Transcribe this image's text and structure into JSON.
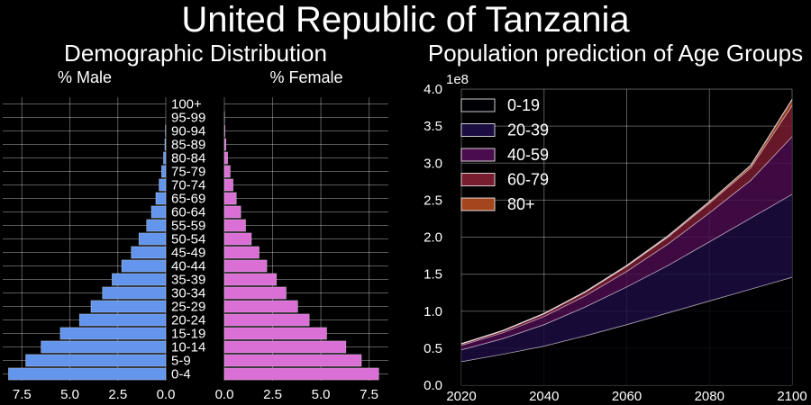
{
  "figure": {
    "title": "United Republic of Tanzania",
    "left_title": "Demographic Distribution",
    "right_title": "Population prediction of Age Groups"
  },
  "chart_data": [
    {
      "type": "bar",
      "orientation": "horizontal",
      "title": "% Male",
      "categories": [
        "0-4",
        "5-9",
        "10-14",
        "15-19",
        "20-24",
        "25-29",
        "30-34",
        "35-39",
        "40-44",
        "45-49",
        "50-54",
        "55-59",
        "60-64",
        "65-69",
        "70-74",
        "75-79",
        "80-84",
        "85-89",
        "90-94",
        "95-99",
        "100+"
      ],
      "values": [
        8.2,
        7.3,
        6.5,
        5.5,
        4.5,
        3.9,
        3.3,
        2.8,
        2.3,
        1.8,
        1.4,
        1.0,
        0.75,
        0.52,
        0.35,
        0.22,
        0.12,
        0.05,
        0.02,
        0.0,
        0.0
      ],
      "xlim": [
        8.5,
        0
      ],
      "xticks": [
        "7.5",
        "5.0",
        "2.5",
        "0.0"
      ],
      "color": "#6495ED",
      "grid": true
    },
    {
      "type": "bar",
      "orientation": "horizontal",
      "title": "% Female",
      "categories": [
        "0-4",
        "5-9",
        "10-14",
        "15-19",
        "20-24",
        "25-29",
        "30-34",
        "35-39",
        "40-44",
        "45-49",
        "50-54",
        "55-59",
        "60-64",
        "65-69",
        "70-74",
        "75-79",
        "80-84",
        "85-89",
        "90-94",
        "95-99",
        "100+"
      ],
      "values": [
        8.0,
        7.1,
        6.3,
        5.3,
        4.4,
        3.8,
        3.2,
        2.7,
        2.2,
        1.8,
        1.4,
        1.1,
        0.85,
        0.62,
        0.45,
        0.3,
        0.17,
        0.08,
        0.03,
        0.01,
        0.0
      ],
      "xlim": [
        0,
        8.5
      ],
      "xticks": [
        "0.0",
        "2.5",
        "5.0",
        "7.5"
      ],
      "color": "#DA70D6",
      "grid": true
    },
    {
      "type": "area",
      "stacked": true,
      "title": "Population prediction of Age Groups",
      "x": [
        2020,
        2030,
        2040,
        2050,
        2060,
        2070,
        2080,
        2090,
        2100
      ],
      "series": [
        {
          "name": "0-19",
          "values": [
            0.32,
            0.42,
            0.53,
            0.67,
            0.82,
            0.98,
            1.14,
            1.3,
            1.46
          ],
          "color": "#000004"
        },
        {
          "name": "20-39",
          "values": [
            0.16,
            0.21,
            0.29,
            0.39,
            0.51,
            0.64,
            0.8,
            0.96,
            1.12
          ],
          "color": "#1b0c41"
        },
        {
          "name": "40-59",
          "values": [
            0.06,
            0.08,
            0.11,
            0.15,
            0.21,
            0.29,
            0.39,
            0.51,
            0.78
          ],
          "color": "#4a0c4e"
        },
        {
          "name": "60-79",
          "values": [
            0.018,
            0.025,
            0.035,
            0.048,
            0.068,
            0.095,
            0.13,
            0.17,
            0.42
          ],
          "color": "#781c2f"
        },
        {
          "name": "80+",
          "values": [
            0.002,
            0.003,
            0.004,
            0.006,
            0.009,
            0.013,
            0.02,
            0.03,
            0.08
          ],
          "color": "#a5451e"
        }
      ],
      "ylim": [
        0,
        4.0
      ],
      "yticks": [
        "0.0",
        "0.5",
        "1.0",
        "1.5",
        "2.0",
        "2.5",
        "3.0",
        "3.5",
        "4.0"
      ],
      "xticks": [
        "2020",
        "2040",
        "2060",
        "2080",
        "2100"
      ],
      "xlim": [
        2020,
        2100
      ],
      "y_multiplier": "1e8",
      "legend": "top-left",
      "grid": true
    }
  ]
}
